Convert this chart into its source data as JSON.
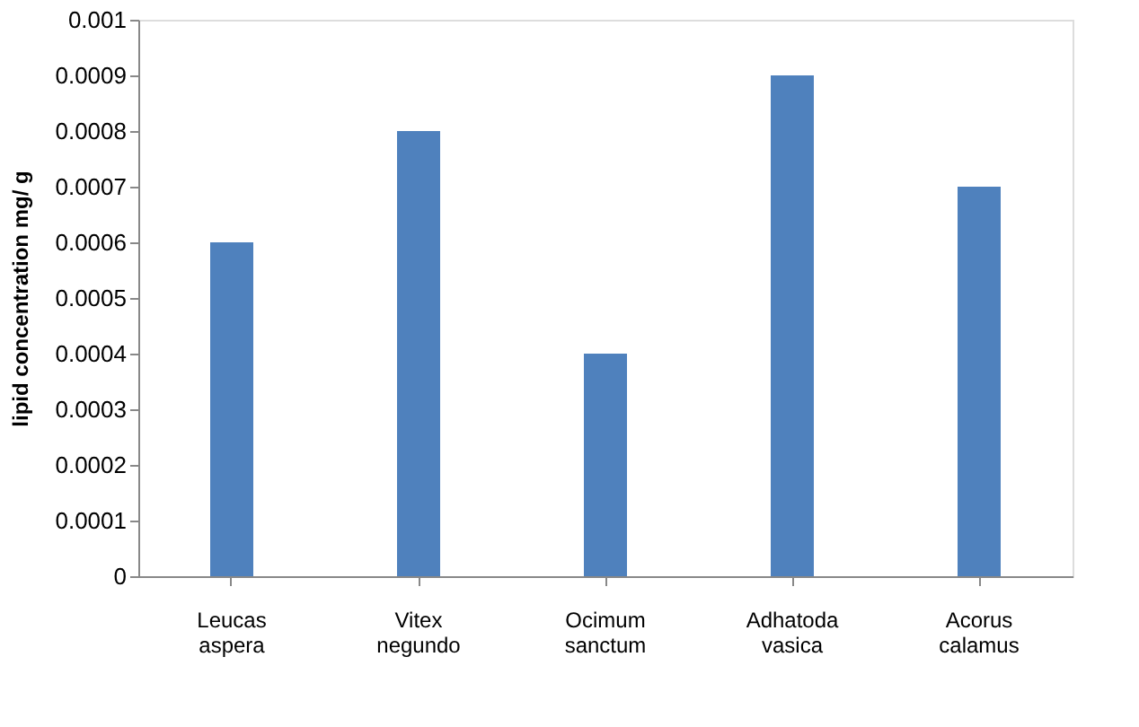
{
  "chart_data": {
    "type": "bar",
    "ylabel": "lipid concentration  mg/ g",
    "categories": [
      "Leucas aspera",
      "Vitex negundo",
      "Ocimum sanctum",
      "Adhatoda vasica",
      "Acorus calamus"
    ],
    "values": [
      0.0006,
      0.0008,
      0.0004,
      0.0009,
      0.0007
    ],
    "color": "#4f81bd",
    "ylim": [
      0,
      0.001
    ],
    "yticks": [
      0,
      0.0001,
      0.0002,
      0.0003,
      0.0004,
      0.0005,
      0.0006,
      0.0007,
      0.0008,
      0.0009,
      0.001
    ],
    "grid": false
  }
}
